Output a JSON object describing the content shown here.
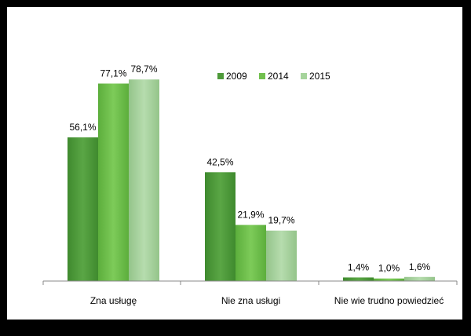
{
  "chart_data": {
    "type": "bar",
    "categories": [
      "Zna usługę",
      "Nie zna usługi",
      "Nie wie  trudno powiedzieć"
    ],
    "series": [
      {
        "name": "2009",
        "values": [
          56.1,
          42.5,
          1.4
        ],
        "labels": [
          "56,1%",
          "42,5%",
          "1,4%"
        ],
        "color": "#4e9a3a"
      },
      {
        "name": "2014",
        "values": [
          77.1,
          21.9,
          1.0
        ],
        "labels": [
          "77,1%",
          "21,9%",
          "1,0%"
        ],
        "color": "#72c04f"
      },
      {
        "name": "2015",
        "values": [
          78.7,
          19.7,
          1.6
        ],
        "labels": [
          "78,7%",
          "19,7%",
          "1,6%"
        ],
        "color": "#a6d49c"
      }
    ],
    "ylim": [
      0,
      100
    ],
    "grid": false,
    "legend_position": "top-center-right"
  }
}
